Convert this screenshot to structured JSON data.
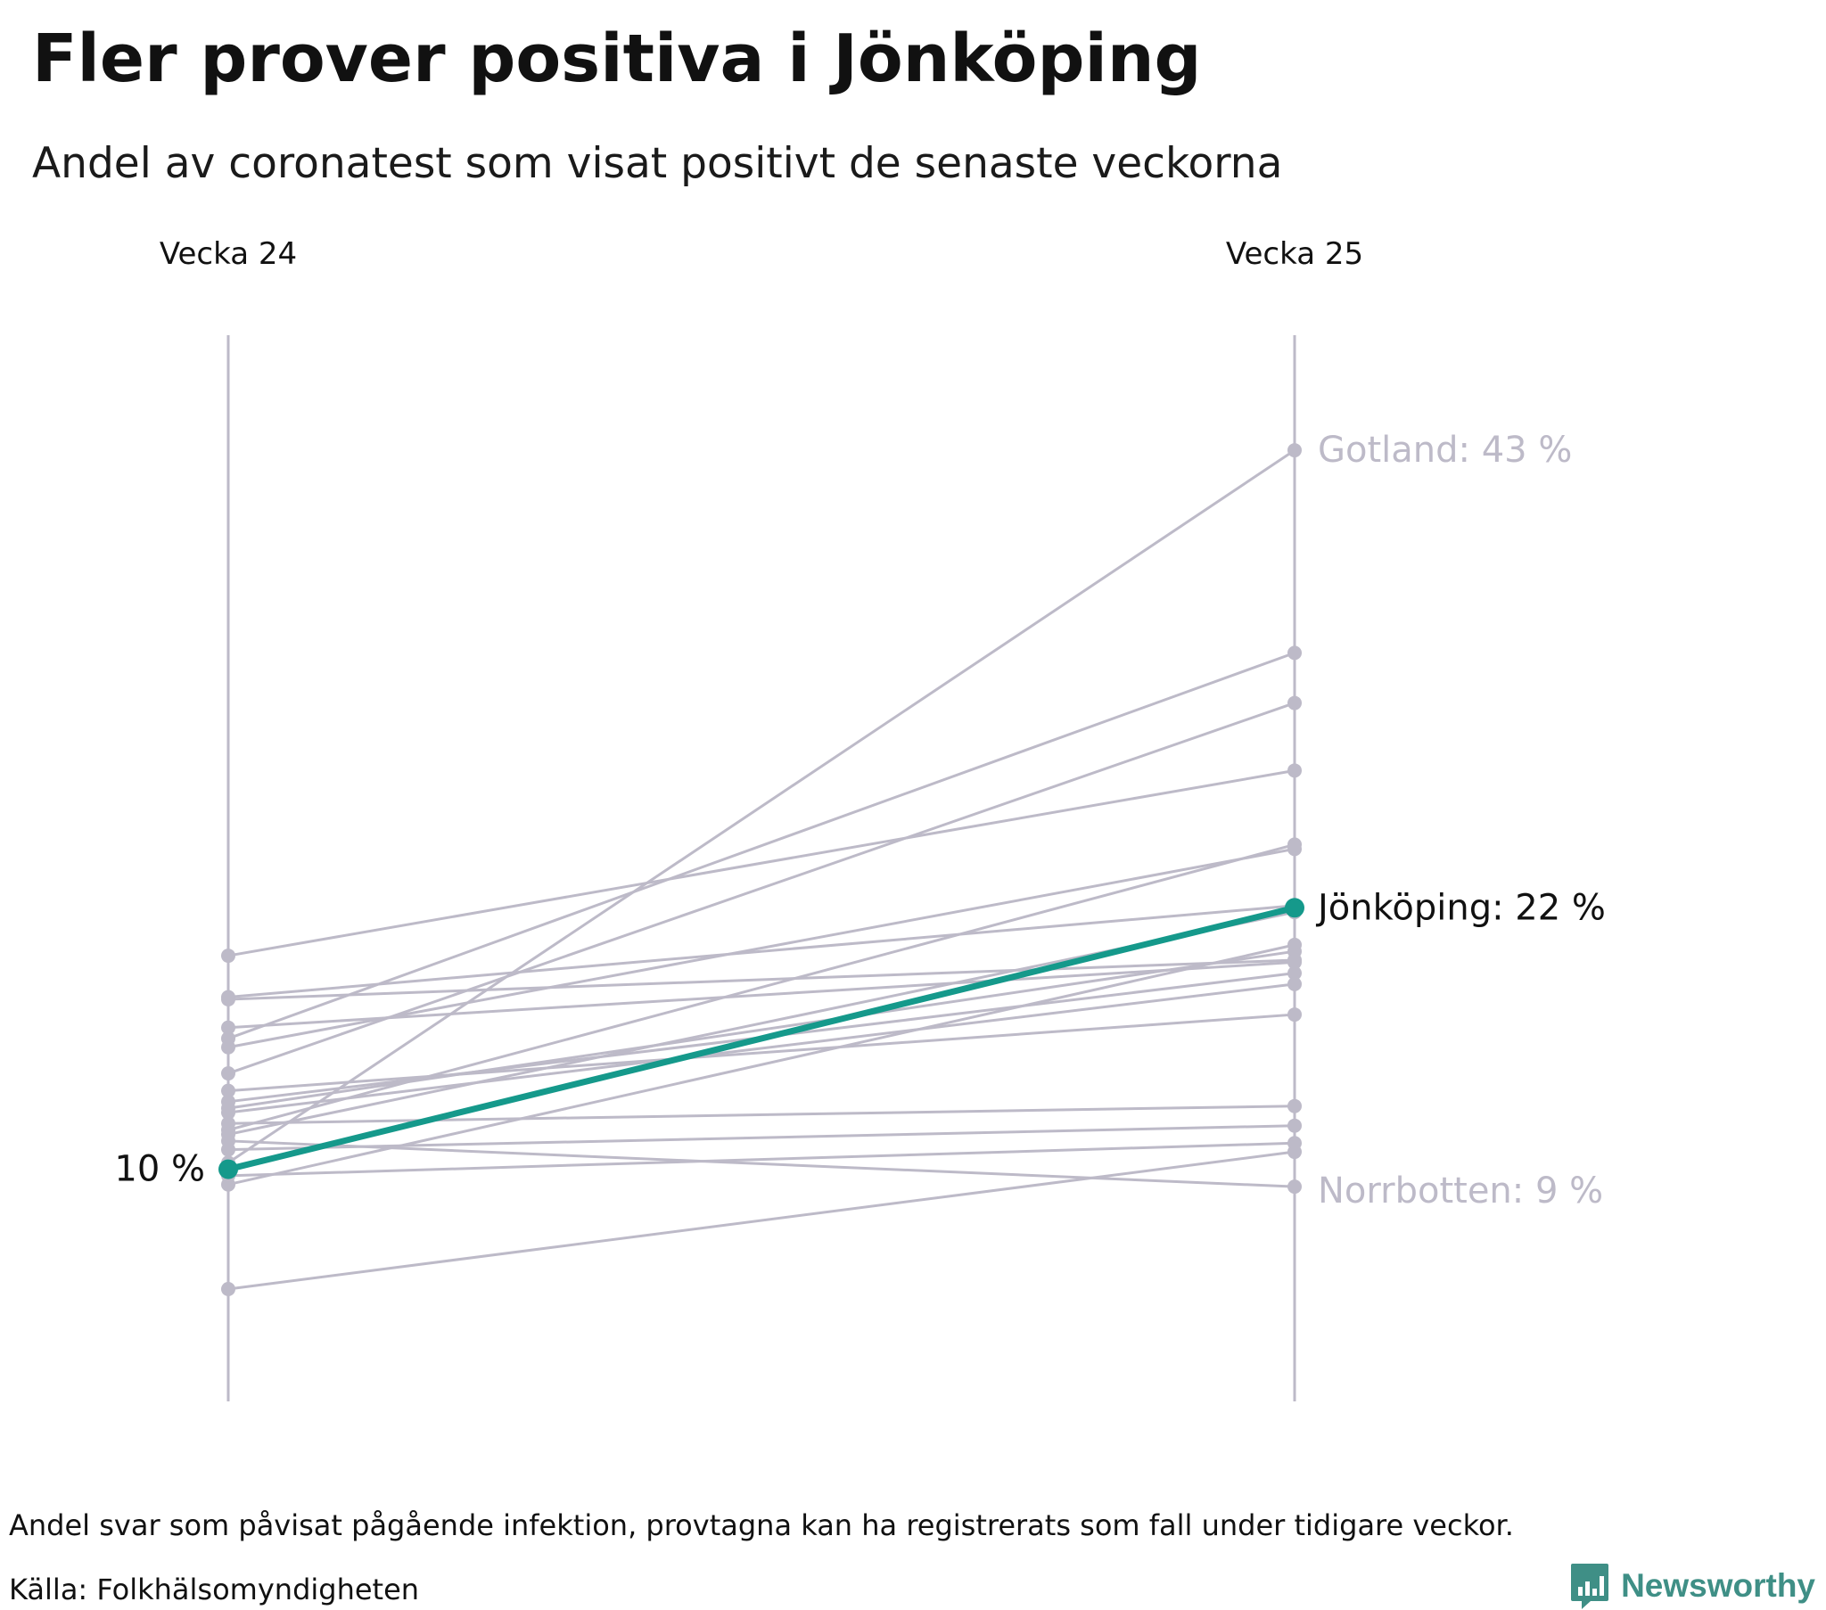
{
  "title": "Fler prover positiva i Jönköping",
  "subtitle": "Andel av coronatest som visat positivt de senaste veckorna",
  "footer": {
    "note": "Andel svar som påvisat pågående infektion, provtagna kan ha registrerats som fall under tidigare veckor.",
    "source": "Källa: Folkhälsomyndigheten",
    "brand": "Newsworthy"
  },
  "colors": {
    "grey": "#bdbac8",
    "highlight": "#15998b",
    "brand": "#3f8f86"
  },
  "chart_data": {
    "type": "line",
    "subtype": "slope",
    "categories": [
      "Vecka 24",
      "Vecka 25"
    ],
    "ylim": [
      4.5,
      48.2
    ],
    "grid": false,
    "highlight": {
      "name": "Jönköping",
      "values": [
        10,
        22
      ],
      "start_label": "10 %",
      "end_label": "Jönköping: 22 %"
    },
    "annotations": [
      {
        "series": "Gotland",
        "text": "Gotland: 43 %",
        "value": 43
      },
      {
        "series": "Norrbotten",
        "text": "Norrbotten: 9 %",
        "value": 9
      }
    ],
    "series": [
      {
        "name": "Gotland",
        "values": [
          10.3,
          43
        ]
      },
      {
        "name": "Norrbotten",
        "values": [
          11.3,
          9.2
        ]
      },
      {
        "values": [
          4.5,
          10.8
        ]
      },
      {
        "values": [
          9.3,
          20.3
        ]
      },
      {
        "values": [
          9.7,
          11.2
        ]
      },
      {
        "values": [
          15.6,
          24.7
        ]
      },
      {
        "values": [
          14.4,
          31.4
        ]
      },
      {
        "values": [
          19.8,
          28.3
        ]
      },
      {
        "values": [
          17.9,
          22.1
        ]
      },
      {
        "values": [
          17.8,
          19.6
        ]
      },
      {
        "values": [
          16.5,
          19.5
        ]
      },
      {
        "values": [
          13.6,
          17.1
        ]
      },
      {
        "values": [
          13.1,
          19.0
        ]
      },
      {
        "values": [
          12.6,
          18.5
        ]
      },
      {
        "values": [
          12.1,
          12.9
        ]
      },
      {
        "values": [
          11.8,
          24.9
        ]
      },
      {
        "values": [
          11.6,
          21.8
        ]
      },
      {
        "values": [
          10.9,
          12.0
        ]
      },
      {
        "values": [
          12.8,
          20.0
        ]
      },
      {
        "values": [
          16.0,
          33.7
        ]
      }
    ]
  }
}
